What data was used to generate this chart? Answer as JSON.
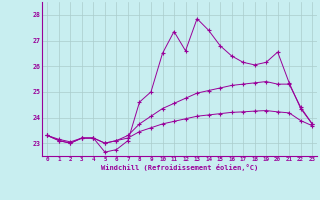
{
  "xlabel": "Windchill (Refroidissement éolien,°C)",
  "bg_color": "#c8eef0",
  "line_color": "#990099",
  "grid_color": "#aacccc",
  "xlim": [
    -0.5,
    23.4
  ],
  "ylim": [
    22.5,
    28.5
  ],
  "yticks": [
    23,
    24,
    25,
    26,
    27,
    28
  ],
  "xticks": [
    0,
    1,
    2,
    3,
    4,
    5,
    6,
    7,
    8,
    9,
    10,
    11,
    12,
    13,
    14,
    15,
    16,
    17,
    18,
    19,
    20,
    21,
    22,
    23
  ],
  "series1_x": [
    0,
    1,
    2,
    3,
    4,
    5,
    6,
    7,
    8,
    9,
    10,
    11,
    12,
    13,
    14,
    15,
    16,
    17,
    18,
    19,
    20,
    21,
    22,
    23
  ],
  "series1_y": [
    23.3,
    23.1,
    23.0,
    23.2,
    23.2,
    22.65,
    22.75,
    23.1,
    24.6,
    25.0,
    26.5,
    27.35,
    26.6,
    27.85,
    27.4,
    26.8,
    26.4,
    26.15,
    26.05,
    26.15,
    26.55,
    25.35,
    24.35,
    23.75
  ],
  "series2_x": [
    0,
    1,
    2,
    3,
    4,
    5,
    6,
    7,
    8,
    9,
    10,
    11,
    12,
    13,
    14,
    15,
    16,
    17,
    18,
    19,
    20,
    21,
    22,
    23
  ],
  "series2_y": [
    23.3,
    23.1,
    23.0,
    23.2,
    23.2,
    23.0,
    23.1,
    23.3,
    23.75,
    24.05,
    24.35,
    24.55,
    24.75,
    24.95,
    25.05,
    25.15,
    25.25,
    25.3,
    25.35,
    25.4,
    25.3,
    25.3,
    24.4,
    23.75
  ],
  "series3_x": [
    0,
    1,
    2,
    3,
    4,
    5,
    6,
    7,
    8,
    9,
    10,
    11,
    12,
    13,
    14,
    15,
    16,
    17,
    18,
    19,
    20,
    21,
    22,
    23
  ],
  "series3_y": [
    23.3,
    23.15,
    23.05,
    23.2,
    23.2,
    23.0,
    23.1,
    23.2,
    23.45,
    23.6,
    23.75,
    23.85,
    23.95,
    24.05,
    24.1,
    24.15,
    24.2,
    24.22,
    24.25,
    24.27,
    24.22,
    24.18,
    23.88,
    23.68
  ]
}
